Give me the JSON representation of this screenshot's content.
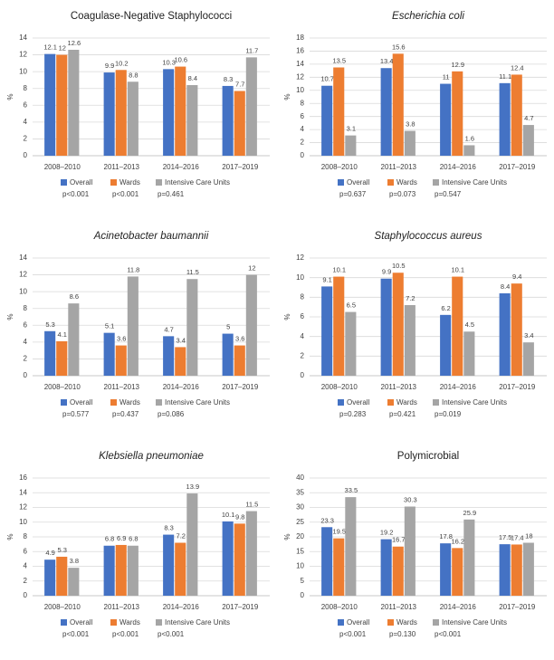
{
  "chart_data": [
    {
      "type": "bar",
      "title": "Coagulase-Negative Staphylococci",
      "title_italic": false,
      "y_label": "%",
      "categories": [
        "2008–2010",
        "2011–2013",
        "2014–2016",
        "2017–2019"
      ],
      "series": [
        {
          "name": "Overall",
          "color": "#4472c4",
          "values": [
            12.1,
            9.9,
            10.3,
            8.3
          ]
        },
        {
          "name": "Wards",
          "color": "#ed7d31",
          "values": [
            12,
            10.2,
            10.6,
            7.7
          ]
        },
        {
          "name": "Intensive Care Units",
          "color": "#a5a5a5",
          "values": [
            12.6,
            8.8,
            8.4,
            11.7
          ]
        }
      ],
      "ylim": [
        0,
        14
      ],
      "yticks": [
        0,
        2,
        4,
        6,
        8,
        10,
        12,
        14
      ],
      "grid": true,
      "p_values": [
        "p<0.001",
        "p<0.001",
        "p=0.461"
      ]
    },
    {
      "type": "bar",
      "title": "Escherichia coli",
      "title_italic": true,
      "y_label": "%",
      "categories": [
        "2008–2010",
        "2011–2013",
        "2014–2016",
        "2017–2019"
      ],
      "series": [
        {
          "name": "Overall",
          "color": "#4472c4",
          "values": [
            10.7,
            13.4,
            11,
            11.1
          ]
        },
        {
          "name": "Wards",
          "color": "#ed7d31",
          "values": [
            13.5,
            15.6,
            12.9,
            12.4
          ]
        },
        {
          "name": "Intensive Care Units",
          "color": "#a5a5a5",
          "values": [
            3.1,
            3.8,
            1.6,
            4.7
          ]
        }
      ],
      "ylim": [
        0,
        18
      ],
      "yticks": [
        0,
        2,
        4,
        6,
        8,
        10,
        12,
        14,
        16,
        18
      ],
      "grid": true,
      "p_values": [
        "p=0.637",
        "p=0.073",
        "p=0.547"
      ]
    },
    {
      "type": "bar",
      "title": "Acinetobacter baumannii",
      "title_italic": true,
      "y_label": "%",
      "categories": [
        "2008–2010",
        "2011–2013",
        "2014–2016",
        "2017–2019"
      ],
      "series": [
        {
          "name": "Overall",
          "color": "#4472c4",
          "values": [
            5.3,
            5.1,
            4.7,
            5
          ]
        },
        {
          "name": "Wards",
          "color": "#ed7d31",
          "values": [
            4.1,
            3.6,
            3.4,
            3.6
          ]
        },
        {
          "name": "Intensive Care Units",
          "color": "#a5a5a5",
          "values": [
            8.6,
            11.8,
            11.5,
            12
          ]
        }
      ],
      "ylim": [
        0,
        14
      ],
      "yticks": [
        0,
        2,
        4,
        6,
        8,
        10,
        12,
        14
      ],
      "grid": true,
      "p_values": [
        "p=0.577",
        "p=0.437",
        "p=0.086"
      ]
    },
    {
      "type": "bar",
      "title": "Staphylococcus aureus",
      "title_italic": true,
      "y_label": "%",
      "categories": [
        "2008–2010",
        "2011–2013",
        "2014–2016",
        "2017–2019"
      ],
      "series": [
        {
          "name": "Overall",
          "color": "#4472c4",
          "values": [
            9.1,
            9.9,
            6.2,
            8.4
          ]
        },
        {
          "name": "Wards",
          "color": "#ed7d31",
          "values": [
            10.1,
            10.5,
            10.1,
            9.4
          ]
        },
        {
          "name": "Intensive Care Units",
          "color": "#a5a5a5",
          "values": [
            6.5,
            7.2,
            4.5,
            3.4
          ]
        }
      ],
      "ylim": [
        0,
        12
      ],
      "yticks": [
        0,
        2,
        4,
        6,
        8,
        10,
        12
      ],
      "grid": true,
      "p_values": [
        "p=0.283",
        "p=0.421",
        "p=0.019"
      ]
    },
    {
      "type": "bar",
      "title": "Klebsiella pneumoniae",
      "title_italic": true,
      "y_label": "%",
      "categories": [
        "2008–2010",
        "2011–2013",
        "2014–2016",
        "2017–2019"
      ],
      "series": [
        {
          "name": "Overall",
          "color": "#4472c4",
          "values": [
            4.9,
            6.8,
            8.3,
            10.1
          ]
        },
        {
          "name": "Wards",
          "color": "#ed7d31",
          "values": [
            5.3,
            6.9,
            7.2,
            9.8
          ]
        },
        {
          "name": "Intensive Care Units",
          "color": "#a5a5a5",
          "values": [
            3.8,
            6.8,
            13.9,
            11.5
          ]
        }
      ],
      "ylim": [
        0,
        16
      ],
      "yticks": [
        0,
        2,
        4,
        6,
        8,
        10,
        12,
        14,
        16
      ],
      "grid": true,
      "p_values": [
        "p<0.001",
        "p<0.001",
        "p<0.001"
      ]
    },
    {
      "type": "bar",
      "title": "Polymicrobial",
      "title_italic": false,
      "y_label": "%",
      "categories": [
        "2008–2010",
        "2011–2013",
        "2014–2016",
        "2017–2019"
      ],
      "series": [
        {
          "name": "Overall",
          "color": "#4472c4",
          "values": [
            23.3,
            19.2,
            17.8,
            17.5
          ]
        },
        {
          "name": "Wards",
          "color": "#ed7d31",
          "values": [
            19.5,
            16.7,
            16.2,
            17.4
          ]
        },
        {
          "name": "Intensive Care Units",
          "color": "#a5a5a5",
          "values": [
            33.5,
            30.3,
            25.9,
            18
          ]
        }
      ],
      "ylim": [
        0,
        40
      ],
      "yticks": [
        0,
        5,
        10,
        15,
        20,
        25,
        30,
        35,
        40
      ],
      "grid": true,
      "p_values": [
        "p<0.001",
        "p=0.130",
        "p<0.001"
      ]
    }
  ]
}
